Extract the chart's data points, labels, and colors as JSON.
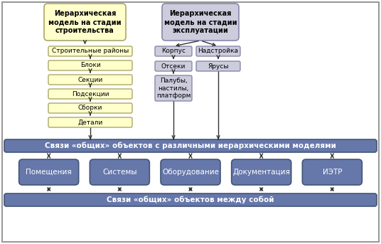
{
  "bg_color": "#ffffff",
  "yellow_fill": "#ffffcc",
  "yellow_border": "#aaa866",
  "lavender_fill": "#ccccdd",
  "lavender_border": "#8888aa",
  "blue_fill": "#6677aa",
  "blue_border": "#445577",
  "blue_text": "#ffffff",
  "arrow_color": "#333333",
  "outer_border": "#999999",
  "box1_text": "Иерархическая\nмодель на стадии\nстроительства",
  "box2_text": "Иерархическая\nмодель на стадии\nэксплуатации",
  "left_chain": [
    "Строительные районы",
    "Блоки",
    "Секции",
    "Подсекции",
    "Сборки",
    "Детали"
  ],
  "right_top1": "Корпус",
  "right_top2": "Надстройка",
  "right_mid1": "Отсеки",
  "right_mid2": "Ярусы",
  "right_bot": "Палубы,\nнастилы,\nплатформ",
  "wide_bar1": "Связи «общих» объектов с различными иерархическими моделями",
  "wide_bar2": "Связи «общих» объектов между собой",
  "bottom_boxes": [
    "Помещения",
    "Системы",
    "Оборудование",
    "Документация",
    "ИЭТР"
  ]
}
